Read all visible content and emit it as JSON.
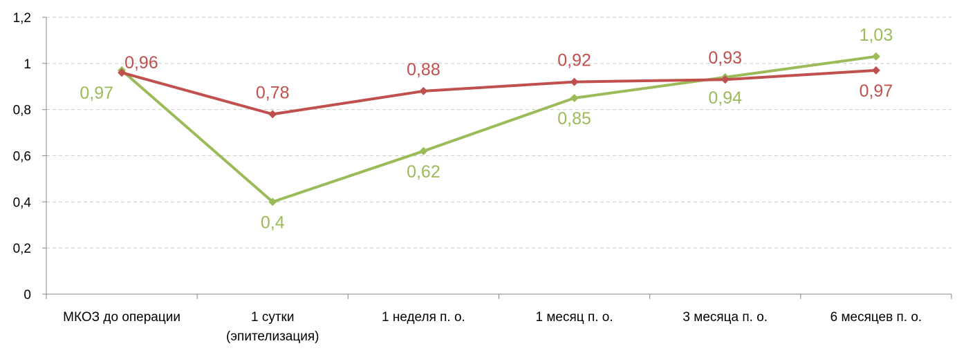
{
  "chart_data": {
    "type": "line",
    "categories": [
      [
        "МКОЗ до операции"
      ],
      [
        "1 сутки",
        "(эпителизация)"
      ],
      [
        "1 неделя п. о."
      ],
      [
        "1 месяц п. о."
      ],
      [
        "3 месяца п. о."
      ],
      [
        "6 месяцев п. о."
      ]
    ],
    "series": [
      {
        "color": "#9bbb59",
        "values": [
          0.97,
          0.4,
          0.62,
          0.85,
          0.94,
          1.03
        ],
        "labels": [
          "0,97",
          "0,4",
          "0,62",
          "0,85",
          "0,94",
          "1,03"
        ],
        "label_placement": [
          "below-left",
          "below",
          "below",
          "below",
          "below",
          "above"
        ]
      },
      {
        "color": "#c0504d",
        "values": [
          0.96,
          0.78,
          0.88,
          0.92,
          0.93,
          0.97
        ],
        "labels": [
          "0,96",
          "0,78",
          "0,88",
          "0,92",
          "0,93",
          "0,97"
        ],
        "label_placement": [
          "above-right",
          "above",
          "above",
          "above",
          "above",
          "below"
        ]
      }
    ],
    "ylim": [
      0,
      1.2
    ],
    "yticks": [
      0,
      0.2,
      0.4,
      0.6,
      0.8,
      1,
      1.2
    ],
    "ytick_labels": [
      "0",
      "0,2",
      "0,4",
      "0,6",
      "0,8",
      "1",
      "1,2"
    ],
    "grid": true,
    "legend": "none",
    "title": "",
    "xlabel": "",
    "ylabel": ""
  }
}
